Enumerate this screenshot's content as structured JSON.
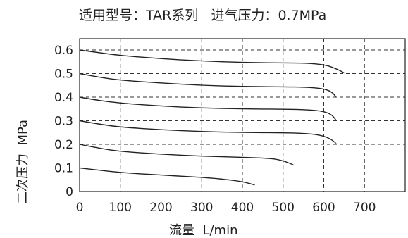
{
  "chart_data": {
    "type": "line",
    "title": "适用型号：TAR系列   进气压力：0.7MPa",
    "xlabel": "流量  L/min",
    "ylabel": "二次压力  MPa",
    "xlim": [
      0,
      800
    ],
    "ylim": [
      0,
      0.6
    ],
    "grid": true,
    "x_ticks": [
      {
        "value": 0,
        "label": "0"
      },
      {
        "value": 100,
        "label": "100"
      },
      {
        "value": 200,
        "label": "200"
      },
      {
        "value": 300,
        "label": "300"
      },
      {
        "value": 400,
        "label": "400"
      },
      {
        "value": 500,
        "label": "500"
      },
      {
        "value": 600,
        "label": "600"
      },
      {
        "value": 700,
        "label": "700"
      }
    ],
    "y_ticks": [
      {
        "value": 0,
        "label": "0"
      },
      {
        "value": 0.1,
        "label": "0.1"
      },
      {
        "value": 0.2,
        "label": "0.2"
      },
      {
        "value": 0.3,
        "label": "0.3"
      },
      {
        "value": 0.4,
        "label": "0.4"
      },
      {
        "value": 0.5,
        "label": "0.5"
      },
      {
        "value": 0.6,
        "label": "0.6"
      }
    ],
    "series": [
      {
        "x": [
          0,
          50,
          100,
          150,
          200,
          250,
          300,
          350,
          400,
          430
        ],
        "y": [
          0.1,
          0.09,
          0.081,
          0.075,
          0.07,
          0.065,
          0.06,
          0.053,
          0.042,
          0.028
        ]
      },
      {
        "x": [
          0,
          50,
          100,
          200,
          300,
          400,
          450,
          480,
          505,
          525
        ],
        "y": [
          0.2,
          0.183,
          0.17,
          0.158,
          0.15,
          0.145,
          0.142,
          0.138,
          0.128,
          0.113
        ]
      },
      {
        "x": [
          0,
          50,
          100,
          200,
          300,
          400,
          500,
          550,
          590,
          615,
          630
        ],
        "y": [
          0.3,
          0.285,
          0.273,
          0.262,
          0.254,
          0.25,
          0.249,
          0.247,
          0.24,
          0.225,
          0.205
        ]
      },
      {
        "x": [
          0,
          50,
          100,
          200,
          300,
          400,
          500,
          560,
          600,
          620,
          630
        ],
        "y": [
          0.4,
          0.385,
          0.375,
          0.362,
          0.354,
          0.35,
          0.349,
          0.347,
          0.34,
          0.325,
          0.303
        ]
      },
      {
        "x": [
          0,
          50,
          100,
          200,
          300,
          400,
          500,
          560,
          600,
          620,
          630
        ],
        "y": [
          0.5,
          0.484,
          0.472,
          0.46,
          0.45,
          0.445,
          0.444,
          0.442,
          0.436,
          0.422,
          0.402
        ]
      },
      {
        "x": [
          0,
          50,
          100,
          200,
          300,
          400,
          500,
          560,
          600,
          625,
          650
        ],
        "y": [
          0.6,
          0.588,
          0.577,
          0.563,
          0.553,
          0.547,
          0.545,
          0.544,
          0.538,
          0.525,
          0.503
        ]
      }
    ]
  }
}
